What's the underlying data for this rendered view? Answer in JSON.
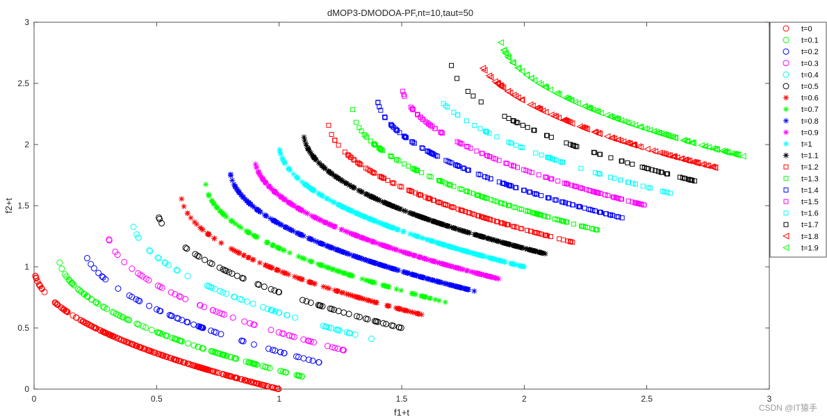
{
  "chart_data": {
    "type": "scatter",
    "title": "dMOP3-DMODOA-PF,nt=10,taut=50",
    "xlabel": "f1+t",
    "ylabel": "f2+t",
    "xlim": [
      0,
      3
    ],
    "ylim": [
      0,
      3
    ],
    "xticks": [
      "0",
      "0.5",
      "1",
      "1.5",
      "2",
      "2.5",
      "3"
    ],
    "yticks": [
      "0",
      "0.5",
      "1",
      "1.5",
      "2",
      "2.5",
      "3"
    ],
    "grid": false,
    "legend_position": "outside-top-right",
    "front_shape": "f2 = 1 - sqrt(f1), f1 in [0,1], shifted by t on both axes",
    "series": [
      {
        "name": "t=0",
        "t": 0.0,
        "marker": "circle",
        "color": "#ff0000",
        "density": "dense"
      },
      {
        "name": "t=0.1",
        "t": 0.1,
        "marker": "circle",
        "color": "#00ff00",
        "density": "medium"
      },
      {
        "name": "t=0.2",
        "t": 0.2,
        "marker": "circle",
        "color": "#0000ff",
        "density": "sparse"
      },
      {
        "name": "t=0.3",
        "t": 0.3,
        "marker": "circle",
        "color": "#ff00ff",
        "density": "sparse"
      },
      {
        "name": "t=0.4",
        "t": 0.4,
        "marker": "circle",
        "color": "#00ffff",
        "density": "sparse"
      },
      {
        "name": "t=0.5",
        "t": 0.5,
        "marker": "circle",
        "color": "#000000",
        "density": "sparse"
      },
      {
        "name": "t=0.6",
        "t": 0.6,
        "marker": "asterisk",
        "color": "#ff0000",
        "density": "medium"
      },
      {
        "name": "t=0.7",
        "t": 0.7,
        "marker": "asterisk",
        "color": "#00ff00",
        "density": "medium"
      },
      {
        "name": "t=0.8",
        "t": 0.8,
        "marker": "asterisk",
        "color": "#0000ff",
        "density": "dense"
      },
      {
        "name": "t=0.9",
        "t": 0.9,
        "marker": "asterisk",
        "color": "#ff00ff",
        "density": "dense"
      },
      {
        "name": "t=1",
        "t": 1.0,
        "marker": "asterisk",
        "color": "#00ffff",
        "density": "dense"
      },
      {
        "name": "t=1.1",
        "t": 1.1,
        "marker": "asterisk",
        "color": "#000000",
        "density": "dense"
      },
      {
        "name": "t=1.2",
        "t": 1.2,
        "marker": "square",
        "color": "#ff0000",
        "density": "medium"
      },
      {
        "name": "t=1.3",
        "t": 1.3,
        "marker": "square",
        "color": "#00ff00",
        "density": "medium"
      },
      {
        "name": "t=1.4",
        "t": 1.4,
        "marker": "square",
        "color": "#0000ff",
        "density": "medium"
      },
      {
        "name": "t=1.5",
        "t": 1.5,
        "marker": "square",
        "color": "#ff00ff",
        "density": "medium"
      },
      {
        "name": "t=1.6",
        "t": 1.6,
        "marker": "square",
        "color": "#00ffff",
        "density": "sparse"
      },
      {
        "name": "t=1.7",
        "t": 1.7,
        "marker": "square",
        "color": "#000000",
        "density": "sparse"
      },
      {
        "name": "t=1.8",
        "t": 1.8,
        "marker": "triangle-left",
        "color": "#ff0000",
        "density": "medium"
      },
      {
        "name": "t=1.9",
        "t": 1.9,
        "marker": "triangle-left",
        "color": "#00ff00",
        "density": "medium"
      }
    ]
  },
  "watermark": "CSDN @IT猿手"
}
